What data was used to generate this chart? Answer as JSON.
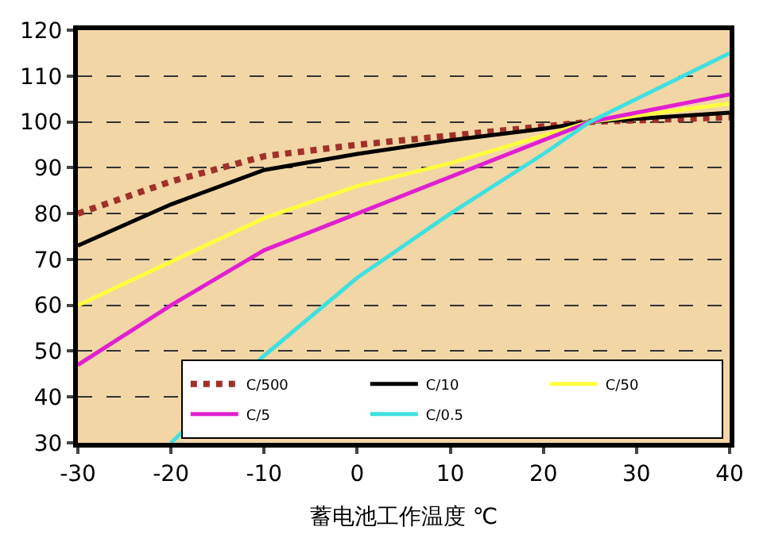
{
  "chart_data": {
    "type": "line",
    "xlabel": "蓄电池工作温度 ℃",
    "xlim": [
      -30,
      40
    ],
    "xticks": [
      -30,
      -20,
      -10,
      0,
      10,
      20,
      30,
      40
    ],
    "ylim": [
      30,
      120
    ],
    "yticks": [
      30,
      40,
      50,
      60,
      70,
      80,
      90,
      100,
      110,
      120
    ],
    "grid": "y",
    "legend": "bottom right",
    "marker": "none",
    "series": [
      {
        "name": "C/500",
        "color": "#a0302a",
        "line_style": "dotted",
        "x": [
          -30,
          -20,
          -10,
          0,
          10,
          20,
          25,
          40
        ],
        "values": [
          80,
          87,
          92.5,
          95,
          97,
          99,
          100,
          101
        ]
      },
      {
        "name": "C/10",
        "color": "#000000",
        "line_style": "solid",
        "x": [
          -30,
          -20,
          -10,
          0,
          10,
          20,
          25,
          40
        ],
        "values": [
          73,
          82,
          89.5,
          93,
          96,
          98.5,
          100,
          102
        ]
      },
      {
        "name": "C/50",
        "color": "#ffff40",
        "line_style": "solid",
        "x": [
          -30,
          -10,
          0,
          10,
          20,
          25,
          40
        ],
        "values": [
          60,
          79,
          86,
          91,
          97,
          100,
          104
        ]
      },
      {
        "name": "C/5",
        "color": "#e020d0",
        "line_style": "solid",
        "x": [
          -30,
          -20,
          -10,
          0,
          10,
          20,
          25,
          40
        ],
        "values": [
          47,
          60,
          72,
          80,
          88,
          96,
          100,
          106
        ]
      },
      {
        "name": "C/0.5",
        "color": "#40e0e0",
        "line_style": "solid",
        "x": [
          -20,
          -10,
          0,
          10,
          20,
          25,
          40
        ],
        "values": [
          30,
          49,
          66,
          80,
          93,
          100,
          115
        ]
      }
    ]
  }
}
